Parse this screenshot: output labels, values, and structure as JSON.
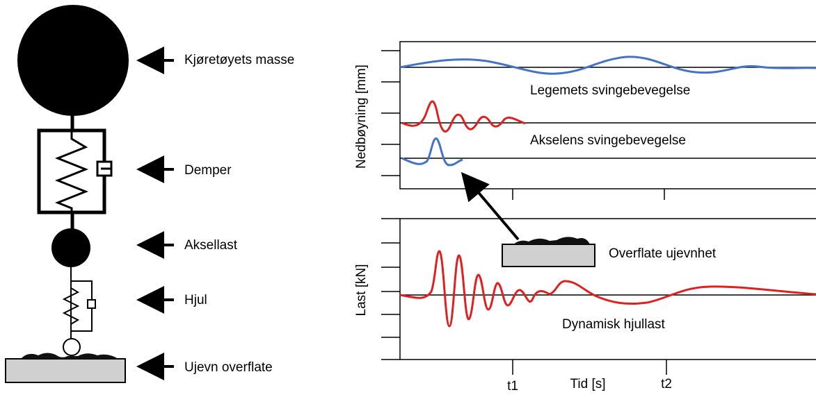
{
  "model": {
    "labels": [
      "Kjøretøyets masse",
      "Demper",
      "Aksellast",
      "Hjul",
      "Ujevn overflate"
    ]
  },
  "upper_plot": {
    "y_label": "Nedbøyning [mm]",
    "annotations": [
      "Legemets svingebevegelse",
      "Akselens svingebevegelse"
    ]
  },
  "lower_plot": {
    "y_label": "Last [kN]",
    "annotations": [
      "Overflate ujevnhet",
      "Dynamisk hjullast"
    ]
  },
  "x_axis": {
    "ticks": [
      "t1",
      "t2"
    ],
    "label": "Tid [s]"
  }
}
